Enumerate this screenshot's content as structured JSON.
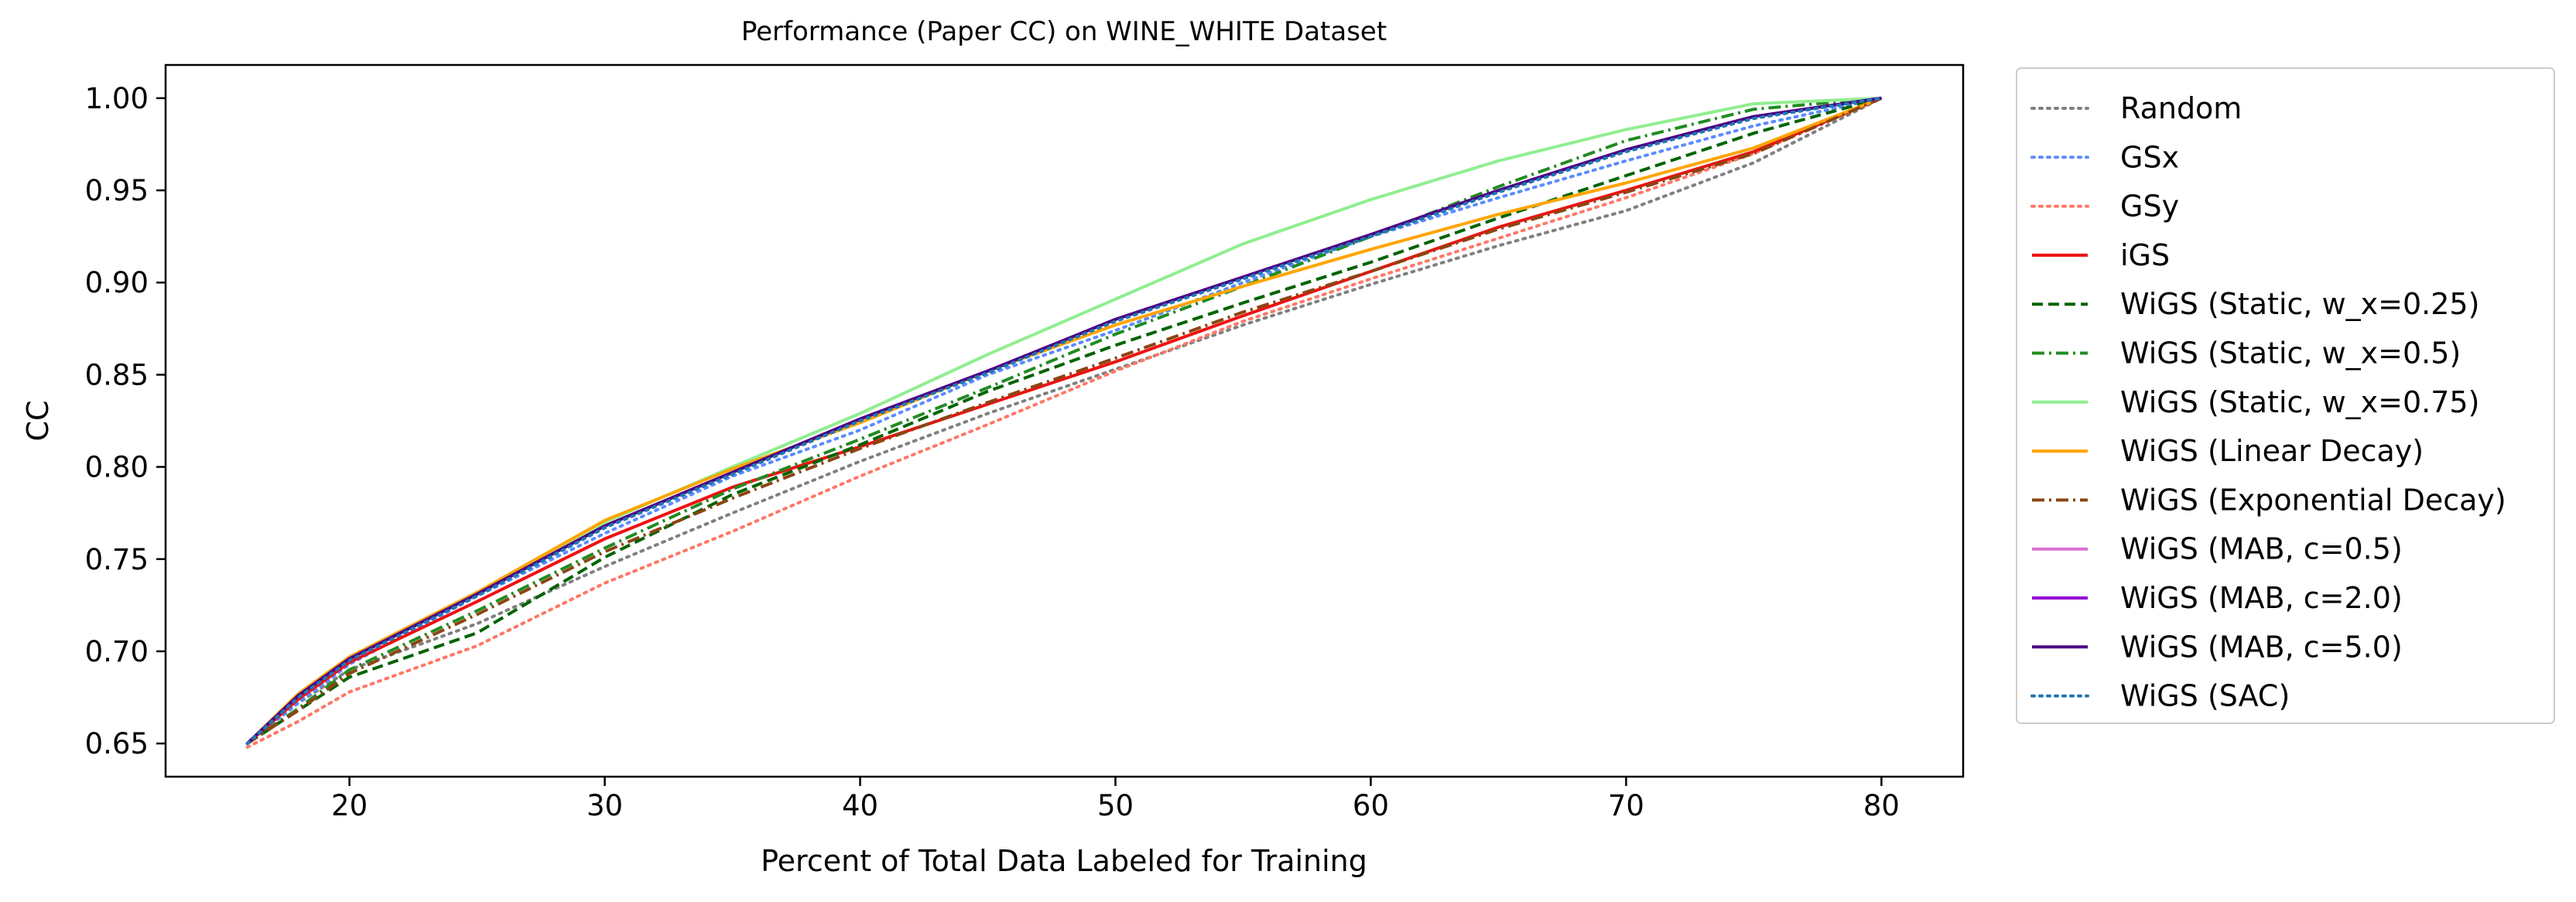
{
  "chart_data": {
    "type": "line",
    "title": "Performance (Paper CC) on WINE_WHITE Dataset",
    "xlabel": "Percent of Total Data Labeled for Training",
    "ylabel": "CC",
    "xlim": [
      12.8,
      83.2
    ],
    "ylim": [
      0.632,
      1.018
    ],
    "xticks": [
      20,
      30,
      40,
      50,
      60,
      70,
      80
    ],
    "xtick_labels": [
      "20",
      "30",
      "40",
      "50",
      "60",
      "70",
      "80"
    ],
    "yticks": [
      0.65,
      0.7,
      0.75,
      0.8,
      0.85,
      0.9,
      0.95,
      1.0
    ],
    "ytick_labels": [
      "0.65",
      "0.70",
      "0.75",
      "0.80",
      "0.85",
      "0.90",
      "0.95",
      "1.00"
    ],
    "grid": false,
    "legend_position": "outside right",
    "x": [
      16,
      18,
      20,
      25,
      30,
      35,
      40,
      45,
      50,
      55,
      60,
      65,
      70,
      75,
      80
    ],
    "series": [
      {
        "name": "Random",
        "color": "#808080",
        "dash": "dotted",
        "values": [
          0.65,
          0.672,
          0.69,
          0.715,
          0.746,
          0.775,
          0.803,
          0.829,
          0.853,
          0.877,
          0.899,
          0.92,
          0.939,
          0.965,
          1.0
        ]
      },
      {
        "name": "GSx",
        "color": "#5b8bff",
        "dash": "dotted",
        "values": [
          0.65,
          0.672,
          0.693,
          0.73,
          0.764,
          0.795,
          0.82,
          0.85,
          0.874,
          0.9,
          0.925,
          0.946,
          0.966,
          0.985,
          1.0
        ]
      },
      {
        "name": "GSy",
        "color": "#ff7766",
        "dash": "dotted",
        "values": [
          0.648,
          0.662,
          0.678,
          0.703,
          0.737,
          0.765,
          0.795,
          0.823,
          0.852,
          0.879,
          0.902,
          0.924,
          0.946,
          0.97,
          1.0
        ]
      },
      {
        "name": "iGS",
        "color": "#ee1111",
        "dash": "solid",
        "values": [
          0.65,
          0.674,
          0.694,
          0.727,
          0.761,
          0.789,
          0.811,
          0.834,
          0.857,
          0.882,
          0.906,
          0.93,
          0.95,
          0.971,
          1.0
        ]
      },
      {
        "name": "WiGS (Static, w_x=0.25)",
        "color": "#006400",
        "dash": "dashed",
        "values": [
          0.65,
          0.668,
          0.686,
          0.71,
          0.751,
          0.785,
          0.812,
          0.841,
          0.866,
          0.889,
          0.911,
          0.935,
          0.958,
          0.981,
          1.0
        ]
      },
      {
        "name": "WiGS (Static, w_x=0.5)",
        "color": "#228b22",
        "dash": "dashdot",
        "values": [
          0.65,
          0.669,
          0.69,
          0.722,
          0.756,
          0.788,
          0.815,
          0.843,
          0.872,
          0.898,
          0.925,
          0.952,
          0.977,
          0.994,
          1.0
        ]
      },
      {
        "name": "WiGS (Static, w_x=0.75)",
        "color": "#90ee90",
        "dash": "solid",
        "values": [
          0.65,
          0.676,
          0.696,
          0.732,
          0.77,
          0.8,
          0.829,
          0.861,
          0.891,
          0.921,
          0.945,
          0.966,
          0.983,
          0.997,
          1.0
        ]
      },
      {
        "name": "WiGS (Linear Decay)",
        "color": "#ffa500",
        "dash": "solid",
        "values": [
          0.65,
          0.677,
          0.697,
          0.732,
          0.771,
          0.799,
          0.824,
          0.852,
          0.877,
          0.898,
          0.918,
          0.937,
          0.954,
          0.973,
          1.0
        ]
      },
      {
        "name": "WiGS (Exponential Decay)",
        "color": "#8b4513",
        "dash": "dashdot",
        "values": [
          0.65,
          0.668,
          0.688,
          0.72,
          0.754,
          0.783,
          0.81,
          0.835,
          0.859,
          0.884,
          0.906,
          0.929,
          0.949,
          0.97,
          1.0
        ]
      },
      {
        "name": "WiGS (MAB, c=0.5)",
        "color": "#da70d6",
        "dash": "solid",
        "values": [
          0.65,
          0.676,
          0.696,
          0.731,
          0.768,
          0.797,
          0.826,
          0.852,
          0.88,
          0.903,
          0.926,
          0.95,
          0.972,
          0.99,
          1.0
        ]
      },
      {
        "name": "WiGS (MAB, c=2.0)",
        "color": "#9400d3",
        "dash": "solid",
        "values": [
          0.65,
          0.676,
          0.696,
          0.731,
          0.768,
          0.797,
          0.826,
          0.852,
          0.88,
          0.903,
          0.926,
          0.95,
          0.972,
          0.99,
          1.0
        ]
      },
      {
        "name": "WiGS (MAB, c=5.0)",
        "color": "#4b0082",
        "dash": "solid",
        "values": [
          0.65,
          0.676,
          0.696,
          0.731,
          0.768,
          0.797,
          0.826,
          0.852,
          0.88,
          0.903,
          0.926,
          0.95,
          0.972,
          0.99,
          1.0
        ]
      },
      {
        "name": "WiGS (SAC)",
        "color": "#1f77b4",
        "dash": "dotted",
        "values": [
          0.65,
          0.675,
          0.695,
          0.73,
          0.767,
          0.796,
          0.825,
          0.851,
          0.879,
          0.902,
          0.925,
          0.949,
          0.971,
          0.989,
          1.0
        ]
      }
    ]
  }
}
